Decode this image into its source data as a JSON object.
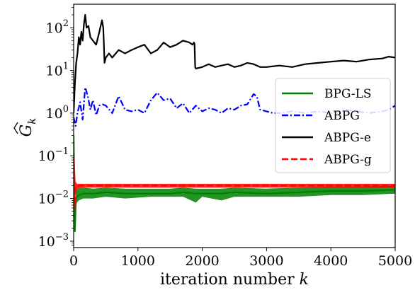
{
  "chart_data": {
    "type": "line",
    "title": "",
    "xlabel": "iteration number k",
    "ylabel": "Ĝ_k",
    "xlim": [
      0,
      5000
    ],
    "ylim_log10": [
      -3.15,
      2.55
    ],
    "y_scale": "log",
    "grid": false,
    "legend_position": "right",
    "x_ticks": [
      0,
      1000,
      2000,
      3000,
      4000,
      5000
    ],
    "x_tick_labels": [
      "0",
      "1000",
      "2000",
      "3000",
      "4000",
      "5000"
    ],
    "y_ticks_log10": [
      -3,
      -2,
      -1,
      0,
      1,
      2
    ],
    "y_tick_labels": [
      "10^-3",
      "10^-2",
      "10^-1",
      "10^0",
      "10^1",
      "10^2"
    ],
    "series": [
      {
        "name": "BPG-LS",
        "color": "#008000",
        "dash": "solid",
        "note_band": "dense oscillation band",
        "x": [
          0,
          20,
          35,
          50,
          80,
          150,
          300,
          500,
          800,
          1200,
          1500,
          1700,
          1900,
          2000,
          2300,
          2500,
          3000,
          3500,
          4000,
          4500,
          5000
        ],
        "y": [
          0.3,
          0.0017,
          0.01,
          0.011,
          0.012,
          0.013,
          0.013,
          0.014,
          0.013,
          0.013,
          0.013,
          0.014,
          0.013,
          0.013,
          0.013,
          0.014,
          0.013,
          0.014,
          0.015,
          0.015,
          0.016
        ],
        "band_low": [
          0.3,
          0.0017,
          0.006,
          0.008,
          0.009,
          0.01,
          0.01,
          0.011,
          0.01,
          0.011,
          0.011,
          0.011,
          0.008,
          0.011,
          0.009,
          0.011,
          0.011,
          0.011,
          0.012,
          0.012,
          0.013
        ],
        "band_high": [
          0.3,
          0.0017,
          0.016,
          0.016,
          0.017,
          0.018,
          0.017,
          0.018,
          0.017,
          0.017,
          0.017,
          0.018,
          0.017,
          0.017,
          0.017,
          0.018,
          0.017,
          0.018,
          0.019,
          0.019,
          0.02
        ]
      },
      {
        "name": "ABPG",
        "color": "#0000ff",
        "dash": "dashdot",
        "x": [
          0,
          30,
          60,
          100,
          140,
          180,
          220,
          260,
          300,
          350,
          400,
          450,
          500,
          600,
          700,
          800,
          900,
          1000,
          1100,
          1200,
          1300,
          1400,
          1500,
          1600,
          1700,
          1800,
          1900,
          2000,
          2100,
          2200,
          2300,
          2400,
          2500,
          2600,
          2700,
          2800,
          2850,
          2900,
          3000,
          3100,
          3200,
          3400,
          3600,
          3800,
          4000,
          4200,
          4400,
          4600,
          4800,
          4900,
          5000
        ],
        "y": [
          0.8,
          0.5,
          1.0,
          1.8,
          0.7,
          4.0,
          2.5,
          1.2,
          2.0,
          0.9,
          1.5,
          1.6,
          1.5,
          1.0,
          2.5,
          1.2,
          1.1,
          1.2,
          1.0,
          2.0,
          3.0,
          2.0,
          2.2,
          1.3,
          1.7,
          1.0,
          1.5,
          1.1,
          1.3,
          1.2,
          1.0,
          1.3,
          1.2,
          1.5,
          1.6,
          2.8,
          2.4,
          1.2,
          1.1,
          1.0,
          1.0,
          1.1,
          1.0,
          1.1,
          1.0,
          1.2,
          1.1,
          1.0,
          1.1,
          1.2,
          1.5
        ]
      },
      {
        "name": "ABPG-e",
        "color": "#000000",
        "dash": "solid",
        "x": [
          0,
          20,
          40,
          60,
          80,
          100,
          120,
          140,
          160,
          180,
          200,
          230,
          260,
          300,
          350,
          400,
          440,
          460,
          470,
          480,
          500,
          550,
          600,
          700,
          800,
          900,
          1000,
          1100,
          1200,
          1300,
          1400,
          1500,
          1600,
          1700,
          1800,
          1850,
          1870,
          1880,
          1890,
          1900,
          2000,
          2100,
          2200,
          2300,
          2400,
          2500,
          2600,
          2700,
          2800,
          2900,
          3000,
          3200,
          3400,
          3600,
          3800,
          4000,
          4200,
          4400,
          4600,
          4800,
          4900,
          5000
        ],
        "y": [
          1.0,
          5.0,
          15,
          25,
          60,
          40,
          80,
          50,
          120,
          200,
          100,
          110,
          60,
          50,
          40,
          80,
          150,
          100,
          40,
          15,
          20,
          25,
          20,
          30,
          25,
          30,
          35,
          40,
          25,
          30,
          45,
          35,
          40,
          50,
          45,
          40,
          45,
          42,
          12,
          11,
          12,
          14,
          12,
          13,
          14,
          12,
          13,
          15,
          14,
          12,
          12,
          13,
          12,
          14,
          15,
          16,
          17,
          16,
          18,
          19,
          21,
          20
        ]
      },
      {
        "name": "ABPG-g",
        "color": "#ff0000",
        "dash": "dashed",
        "note_band": "dense oscillation band",
        "x": [
          0,
          15,
          30,
          50,
          80,
          150,
          300,
          500,
          1000,
          2000,
          3000,
          4000,
          5000
        ],
        "y": [
          0.09,
          0.006,
          0.018,
          0.019,
          0.02,
          0.02,
          0.02,
          0.02,
          0.02,
          0.02,
          0.02,
          0.02,
          0.02
        ],
        "band_low": [
          0.09,
          0.005,
          0.012,
          0.016,
          0.017,
          0.018,
          0.018,
          0.018,
          0.018,
          0.018,
          0.018,
          0.018,
          0.018
        ],
        "band_high": [
          0.09,
          0.08,
          0.025,
          0.022,
          0.022,
          0.022,
          0.022,
          0.022,
          0.022,
          0.022,
          0.022,
          0.022,
          0.022
        ]
      }
    ]
  }
}
